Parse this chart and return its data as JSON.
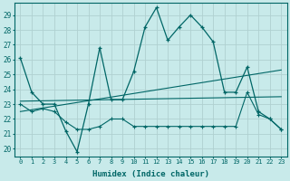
{
  "xlabel": "Humidex (Indice chaleur)",
  "bg_color": "#c8eaea",
  "grid_color": "#b0d0d0",
  "line_color": "#006666",
  "xlim": [
    -0.5,
    23.5
  ],
  "ylim": [
    19.5,
    29.8
  ],
  "yticks": [
    20,
    21,
    22,
    23,
    24,
    25,
    26,
    27,
    28,
    29
  ],
  "xticks": [
    0,
    1,
    2,
    3,
    4,
    5,
    6,
    7,
    8,
    9,
    10,
    11,
    12,
    13,
    14,
    15,
    16,
    17,
    18,
    19,
    20,
    21,
    22,
    23
  ],
  "series1_x": [
    0,
    1,
    2,
    3,
    4,
    5,
    6,
    7,
    8,
    9,
    10,
    11,
    12,
    13,
    14,
    15,
    16,
    17,
    18,
    19,
    20,
    21,
    22,
    23
  ],
  "series1_y": [
    26.1,
    23.8,
    23.0,
    23.0,
    21.2,
    19.8,
    23.0,
    26.8,
    23.3,
    23.3,
    25.2,
    28.2,
    29.5,
    27.3,
    28.2,
    29.0,
    28.2,
    27.2,
    23.8,
    23.8,
    25.5,
    22.5,
    22.0,
    21.3
  ],
  "series2_x": [
    0,
    23
  ],
  "series2_y": [
    22.5,
    25.3
  ],
  "series3_x": [
    0,
    23
  ],
  "series3_y": [
    23.2,
    23.5
  ],
  "series4_x": [
    0,
    1,
    2,
    3,
    4,
    5,
    6,
    7,
    8,
    9,
    10,
    11,
    12,
    13,
    14,
    15,
    16,
    17,
    18,
    19,
    20,
    21,
    22,
    23
  ],
  "series4_y": [
    23.0,
    22.5,
    22.7,
    22.5,
    21.8,
    21.3,
    21.3,
    21.5,
    22.0,
    22.0,
    21.5,
    21.5,
    21.5,
    21.5,
    21.5,
    21.5,
    21.5,
    21.5,
    21.5,
    21.5,
    23.8,
    22.3,
    22.0,
    21.3
  ]
}
